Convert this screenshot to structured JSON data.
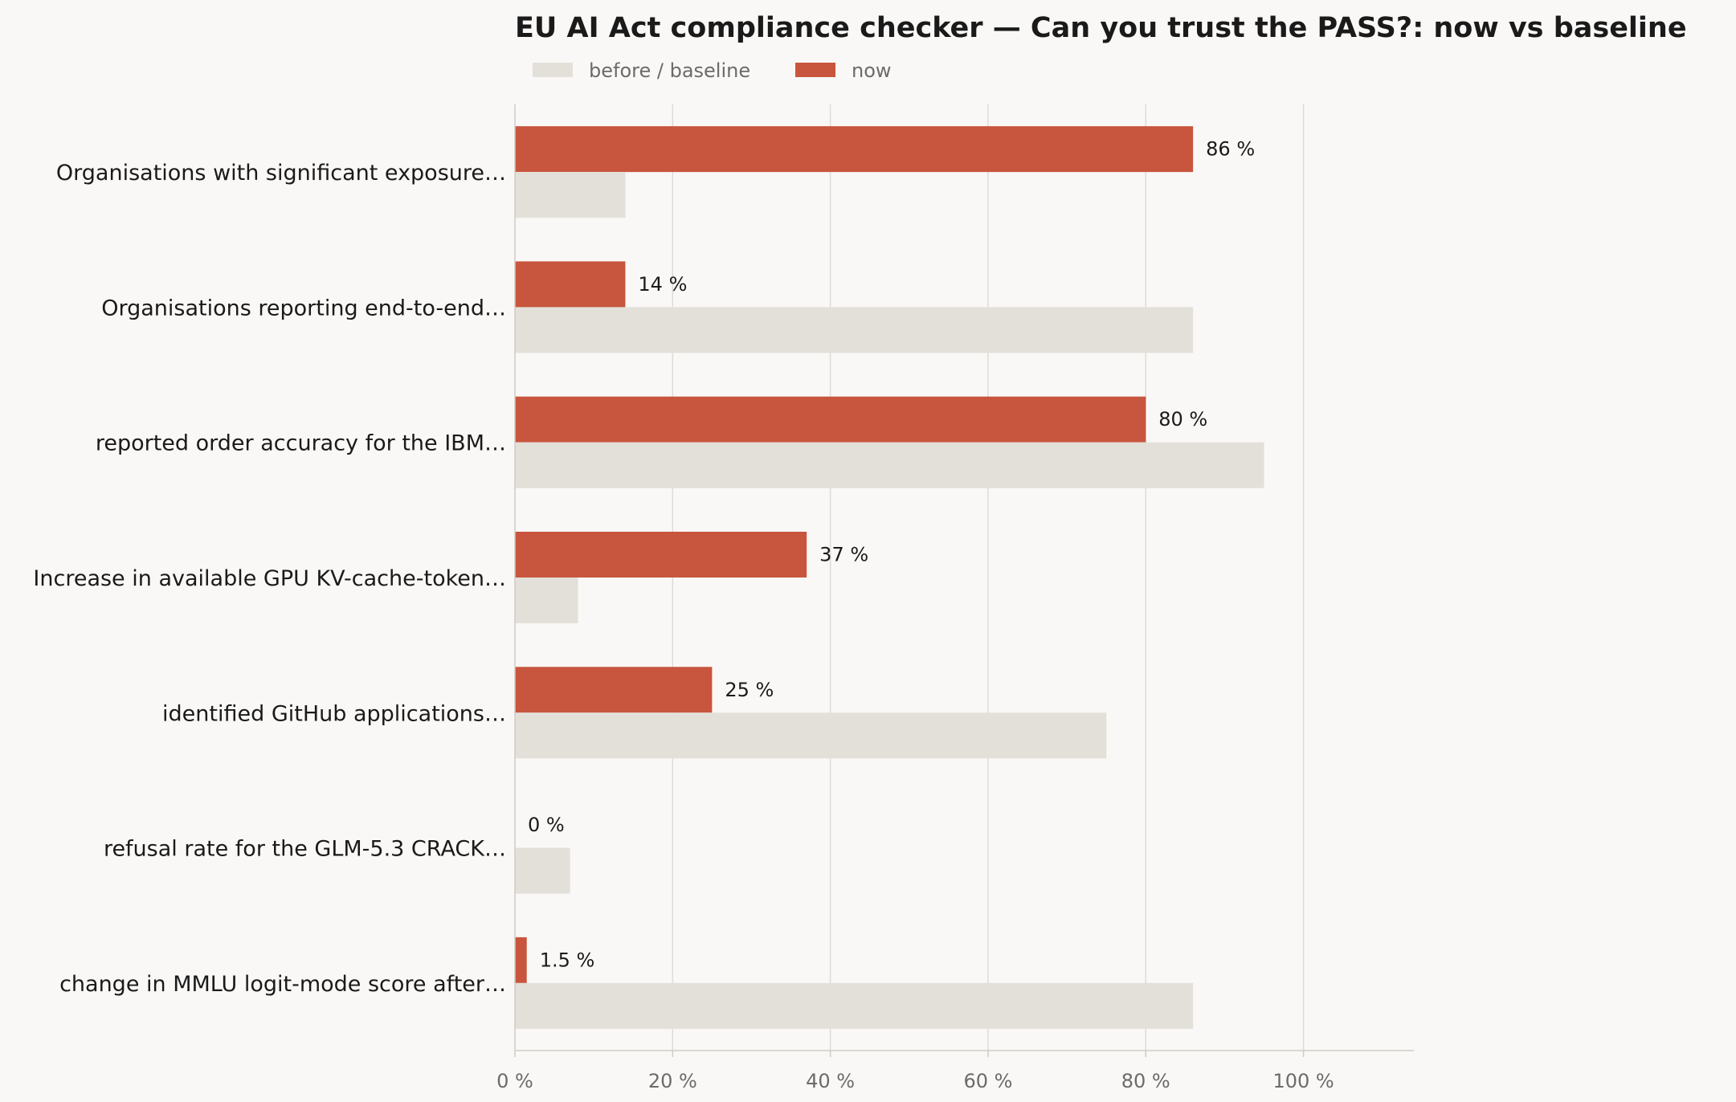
{
  "chart_data": {
    "type": "bar",
    "orientation": "horizontal",
    "title": "EU AI Act compliance checker — Can you trust the PASS?: now vs baseline",
    "xlabel": "",
    "ylabel": "",
    "xlim": [
      0,
      114
    ],
    "ticks": [
      0,
      20,
      40,
      60,
      80,
      100
    ],
    "tick_labels": [
      "0 %",
      "20 %",
      "40 %",
      "60 %",
      "80 %",
      "100 %"
    ],
    "grid": "vertical",
    "legend_position": "top-left",
    "categories": [
      "Organisations with significant exposure…",
      "Organisations reporting end-to-end…",
      "reported order accuracy for the IBM…",
      "Increase in available GPU KV-cache-token…",
      "identified GitHub applications…",
      "refusal rate for the GLM-5.3 CRACK…",
      "change in MMLU logit-mode score after…"
    ],
    "series": [
      {
        "name": "before / baseline",
        "color": "#e3e0da",
        "values": [
          14,
          86,
          95,
          8,
          75,
          7,
          86
        ]
      },
      {
        "name": "now",
        "color": "#c8553d",
        "values": [
          86,
          14,
          80,
          37,
          25,
          0,
          1.5
        ],
        "data_labels": [
          "86 %",
          "14 %",
          "80 %",
          "37 %",
          "25 %",
          "0 %",
          "1.5 %"
        ]
      }
    ]
  }
}
